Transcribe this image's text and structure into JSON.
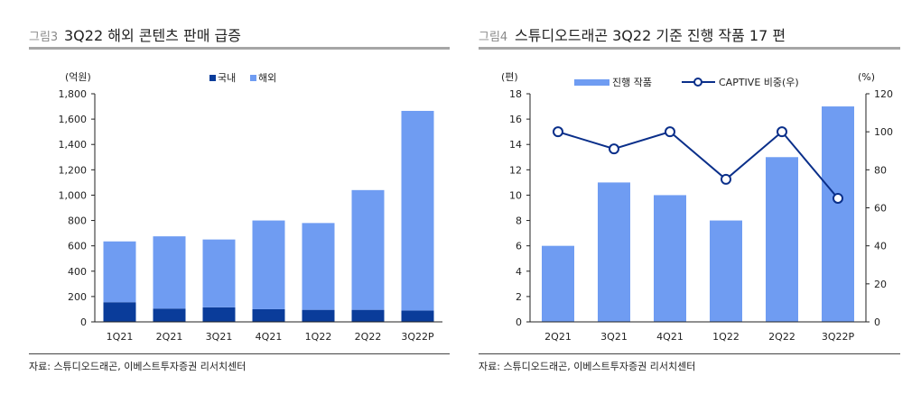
{
  "colors": {
    "domestic": "#0a3c9a",
    "overseas": "#6f9cf2",
    "line": "#0a2f8a",
    "rule": "#a6a6a6"
  },
  "chart_data": [
    {
      "type": "bar",
      "stacked": true,
      "fig_label": "그림3",
      "title": "3Q22 해외 콘텐츠 판매 급증",
      "ylabel": "(억원)",
      "ylim": [
        0,
        1800
      ],
      "yticks": [
        "0",
        "200",
        "400",
        "600",
        "800",
        "1,000",
        "1,200",
        "1,400",
        "1,600",
        "1,800"
      ],
      "categories": [
        "1Q21",
        "2Q21",
        "3Q21",
        "4Q21",
        "1Q22",
        "2Q22",
        "3Q22P"
      ],
      "series": [
        {
          "name": "국내",
          "values": [
            155,
            105,
            115,
            100,
            95,
            95,
            90
          ]
        },
        {
          "name": "해외",
          "values": [
            480,
            570,
            535,
            700,
            685,
            945,
            1575
          ]
        }
      ],
      "legend": "top-center",
      "source": "자료: 스튜디오드래곤, 이베스트투자증권 리서치센터"
    },
    {
      "type": "bar+line",
      "fig_label": "그림4",
      "title": "스튜디오드래곤 3Q22 기준 진행 작품 17 편",
      "ylabel": "(편)",
      "y2label": "(%)",
      "ylim": [
        0,
        18
      ],
      "y2lim": [
        0,
        120
      ],
      "yticks": [
        "0",
        "2",
        "4",
        "6",
        "8",
        "10",
        "12",
        "14",
        "16",
        "18"
      ],
      "y2ticks": [
        "0",
        "20",
        "40",
        "60",
        "80",
        "100",
        "120"
      ],
      "categories": [
        "2Q21",
        "3Q21",
        "4Q21",
        "1Q22",
        "2Q22",
        "3Q22P"
      ],
      "series": [
        {
          "name": "진행 작품",
          "type": "bar",
          "values": [
            6,
            11,
            10,
            8,
            13,
            17
          ]
        },
        {
          "name": "CAPTIVE 비중(우)",
          "type": "line",
          "values": [
            100,
            91,
            100,
            75,
            100,
            65
          ]
        }
      ],
      "legend": "top-center",
      "source": "자료: 스튜디오드래곤, 이베스트투자증권 리서치센터"
    }
  ]
}
